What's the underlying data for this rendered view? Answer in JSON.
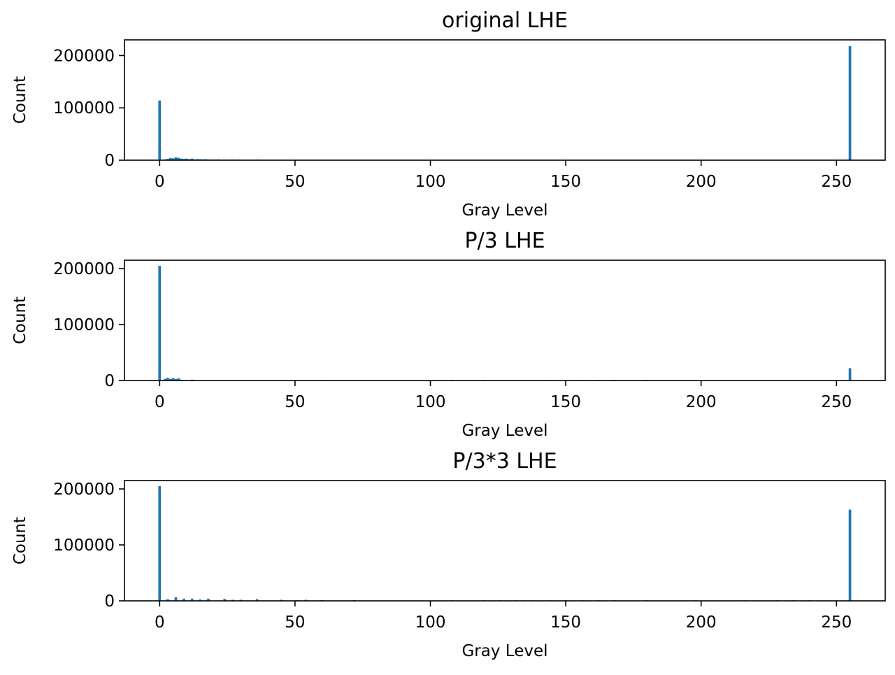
{
  "colors": {
    "bar": "#1f77b4",
    "axis": "#000000",
    "background": "#ffffff"
  },
  "chart_data": [
    {
      "type": "bar",
      "title": "original LHE",
      "xlabel": "Gray Level",
      "ylabel": "Count",
      "xlim": [
        -13,
        268
      ],
      "ylim": [
        0,
        230000
      ],
      "xticks": [
        0,
        50,
        100,
        150,
        200,
        250
      ],
      "yticks": [
        0,
        100000,
        200000
      ],
      "grid": false,
      "legend": "none",
      "bars": [
        {
          "x": 0,
          "y": 114000
        },
        {
          "x": 2,
          "y": 1500
        },
        {
          "x": 3,
          "y": 2500
        },
        {
          "x": 4,
          "y": 4000
        },
        {
          "x": 5,
          "y": 3500
        },
        {
          "x": 6,
          "y": 5500
        },
        {
          "x": 7,
          "y": 4500
        },
        {
          "x": 8,
          "y": 3000
        },
        {
          "x": 9,
          "y": 2500
        },
        {
          "x": 10,
          "y": 3000
        },
        {
          "x": 11,
          "y": 2000
        },
        {
          "x": 12,
          "y": 3000
        },
        {
          "x": 13,
          "y": 1500
        },
        {
          "x": 14,
          "y": 2000
        },
        {
          "x": 15,
          "y": 1800
        },
        {
          "x": 16,
          "y": 1500
        },
        {
          "x": 17,
          "y": 1800
        },
        {
          "x": 18,
          "y": 1200
        },
        {
          "x": 19,
          "y": 1500
        },
        {
          "x": 20,
          "y": 1000
        },
        {
          "x": 21,
          "y": 1200
        },
        {
          "x": 22,
          "y": 1500
        },
        {
          "x": 24,
          "y": 1200
        },
        {
          "x": 25,
          "y": 800
        },
        {
          "x": 27,
          "y": 1200
        },
        {
          "x": 29,
          "y": 900
        },
        {
          "x": 30,
          "y": 1000
        },
        {
          "x": 33,
          "y": 800
        },
        {
          "x": 36,
          "y": 1200
        },
        {
          "x": 38,
          "y": 500
        },
        {
          "x": 42,
          "y": 400
        },
        {
          "x": 255,
          "y": 218000
        }
      ]
    },
    {
      "type": "bar",
      "title": "P/3 LHE",
      "xlabel": "Gray Level",
      "ylabel": "Count",
      "xlim": [
        -13,
        268
      ],
      "ylim": [
        0,
        215000
      ],
      "xticks": [
        0,
        50,
        100,
        150,
        200,
        250
      ],
      "yticks": [
        0,
        100000,
        200000
      ],
      "grid": false,
      "legend": "none",
      "bars": [
        {
          "x": 0,
          "y": 205000
        },
        {
          "x": 2,
          "y": 3000
        },
        {
          "x": 3,
          "y": 5000
        },
        {
          "x": 4,
          "y": 3000
        },
        {
          "x": 5,
          "y": 4500
        },
        {
          "x": 6,
          "y": 2500
        },
        {
          "x": 7,
          "y": 4000
        },
        {
          "x": 8,
          "y": 1500
        },
        {
          "x": 10,
          "y": 1000
        },
        {
          "x": 12,
          "y": 1500
        },
        {
          "x": 13,
          "y": 800
        },
        {
          "x": 60,
          "y": 1000
        },
        {
          "x": 84,
          "y": 800
        },
        {
          "x": 108,
          "y": 1000
        },
        {
          "x": 114,
          "y": 800
        },
        {
          "x": 120,
          "y": 1000
        },
        {
          "x": 126,
          "y": 800
        },
        {
          "x": 132,
          "y": 800
        },
        {
          "x": 144,
          "y": 1000
        },
        {
          "x": 150,
          "y": 800
        },
        {
          "x": 156,
          "y": 1000
        },
        {
          "x": 159,
          "y": 800
        },
        {
          "x": 162,
          "y": 1000
        },
        {
          "x": 165,
          "y": 800
        },
        {
          "x": 168,
          "y": 1200
        },
        {
          "x": 171,
          "y": 800
        },
        {
          "x": 174,
          "y": 800
        },
        {
          "x": 177,
          "y": 800
        },
        {
          "x": 180,
          "y": 1200
        },
        {
          "x": 192,
          "y": 800
        },
        {
          "x": 204,
          "y": 600
        },
        {
          "x": 219,
          "y": 800
        },
        {
          "x": 240,
          "y": 800
        },
        {
          "x": 255,
          "y": 22000
        }
      ]
    },
    {
      "type": "bar",
      "title": "P/3*3 LHE",
      "xlabel": "Gray Level",
      "ylabel": "Count",
      "xlim": [
        -13,
        268
      ],
      "ylim": [
        0,
        215000
      ],
      "xticks": [
        0,
        50,
        100,
        150,
        200,
        250
      ],
      "yticks": [
        0,
        100000,
        200000
      ],
      "grid": false,
      "legend": "none",
      "bars": [
        {
          "x": 0,
          "y": 205000
        },
        {
          "x": 3,
          "y": 3000
        },
        {
          "x": 6,
          "y": 6500
        },
        {
          "x": 9,
          "y": 4000
        },
        {
          "x": 12,
          "y": 4000
        },
        {
          "x": 15,
          "y": 2500
        },
        {
          "x": 18,
          "y": 4000
        },
        {
          "x": 24,
          "y": 3500
        },
        {
          "x": 27,
          "y": 2000
        },
        {
          "x": 30,
          "y": 2000
        },
        {
          "x": 36,
          "y": 3000
        },
        {
          "x": 45,
          "y": 2000
        },
        {
          "x": 51,
          "y": 1500
        },
        {
          "x": 54,
          "y": 2000
        },
        {
          "x": 60,
          "y": 1500
        },
        {
          "x": 72,
          "y": 1200
        },
        {
          "x": 108,
          "y": 1000
        },
        {
          "x": 120,
          "y": 1000
        },
        {
          "x": 126,
          "y": 1000
        },
        {
          "x": 132,
          "y": 1000
        },
        {
          "x": 135,
          "y": 1000
        },
        {
          "x": 138,
          "y": 1000
        },
        {
          "x": 144,
          "y": 1000
        },
        {
          "x": 150,
          "y": 1000
        },
        {
          "x": 156,
          "y": 1000
        },
        {
          "x": 162,
          "y": 1000
        },
        {
          "x": 168,
          "y": 1000
        },
        {
          "x": 180,
          "y": 1000
        },
        {
          "x": 198,
          "y": 1000
        },
        {
          "x": 216,
          "y": 1000
        },
        {
          "x": 228,
          "y": 1000
        },
        {
          "x": 234,
          "y": 1000
        },
        {
          "x": 240,
          "y": 1000
        },
        {
          "x": 255,
          "y": 163000
        }
      ]
    }
  ]
}
